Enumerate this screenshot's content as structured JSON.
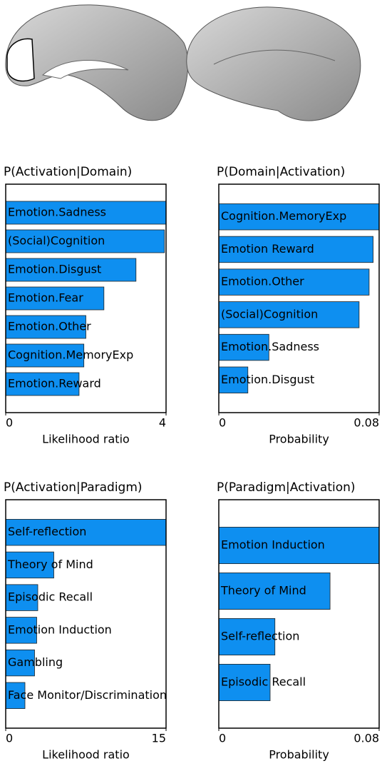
{
  "chart_data": [
    {
      "type": "barh",
      "title": "P(Activation|Domain)",
      "xlabel": "Likelihood ratio",
      "categories": [
        "Emotion.Sadness",
        "(Social)Cognition",
        "Emotion.Disgust",
        "Emotion.Fear",
        "Emotion.Other",
        "Cognition.MemoryExp",
        "Emotion.Reward"
      ],
      "values": [
        4.0,
        3.96,
        3.25,
        2.45,
        2.0,
        1.95,
        1.83
      ],
      "color": "#0e8ff0",
      "xlim": [
        0,
        4
      ],
      "xticks": [
        0,
        4
      ]
    },
    {
      "type": "barh",
      "title": "P(Domain|Activation)",
      "xlabel": "Probability",
      "categories": [
        "Cognition.MemoryExp",
        "Emotion Reward",
        "Emotion.Other",
        "(Social)Cognition",
        "Emotion.Sadness",
        "Emotion.Disgust"
      ],
      "values": [
        0.08,
        0.077,
        0.075,
        0.07,
        0.025,
        0.0145
      ],
      "color": "#0e8ff0",
      "xlim": [
        0,
        0.08
      ],
      "xticks": [
        0,
        0.08
      ]
    },
    {
      "type": "barh",
      "title": "P(Activation|Paradigm)",
      "xlabel": "Likelihood ratio",
      "categories": [
        "Self-reflection",
        "Theory of Mind",
        "Episodic Recall",
        "Emotion Induction",
        "Gambling",
        "Face Monitor/Discrimination"
      ],
      "values": [
        15,
        4.5,
        3.0,
        2.9,
        2.7,
        1.8
      ],
      "color": "#0e8ff0",
      "xlim": [
        0,
        15
      ],
      "xticks": [
        0,
        15
      ]
    },
    {
      "type": "barh",
      "title": "P(Paradigm|Activation)",
      "xlabel": "Probability",
      "categories": [
        "Emotion Induction",
        "Theory of Mind",
        "Self-reflection",
        "Episodic Recall"
      ],
      "values": [
        0.08,
        0.0555,
        0.028,
        0.0256
      ],
      "color": "#0e8ff0",
      "xlim": [
        0,
        0.08
      ],
      "xticks": [
        0,
        0.08
      ]
    }
  ]
}
